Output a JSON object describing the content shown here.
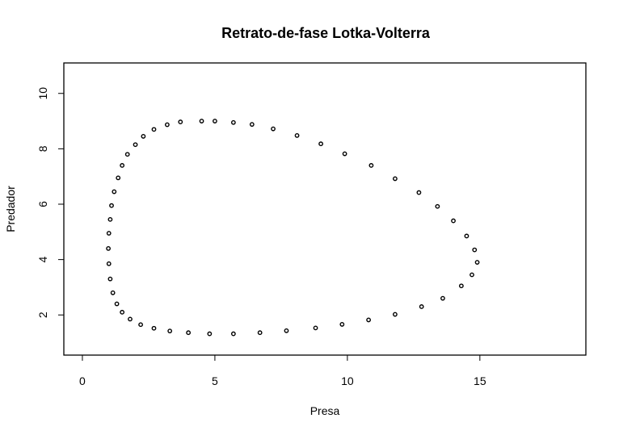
{
  "chart_data": {
    "type": "scatter",
    "title": "Retrato-de-fase Lotka-Volterra",
    "xlabel": "Presa",
    "ylabel": "Predador",
    "xlim": [
      -0.7,
      19.0
    ],
    "ylim": [
      0.55,
      11.1
    ],
    "x_ticks": [
      0,
      5,
      10,
      15
    ],
    "y_ticks": [
      2,
      4,
      6,
      8,
      10
    ],
    "x_tick_labels": [
      "0",
      "5",
      "10",
      "15"
    ],
    "y_tick_labels": [
      "2",
      "4",
      "6",
      "8",
      "10"
    ],
    "marker": "open-circle",
    "color": "#000000",
    "grid": false,
    "series": [
      {
        "x": [
          4.5,
          5.0,
          5.7,
          6.4,
          7.2,
          8.1,
          9.0,
          9.9,
          10.9,
          11.8,
          12.7,
          13.4,
          14.0,
          14.5,
          14.8,
          14.9,
          14.7,
          14.3,
          13.6,
          12.8,
          11.8,
          10.8,
          9.8,
          8.8,
          7.7,
          6.7,
          5.7,
          4.8,
          4.0,
          3.3,
          2.7,
          2.2,
          1.8,
          1.5,
          1.3,
          1.15,
          1.05,
          1.0,
          0.98,
          1.0,
          1.05,
          1.1,
          1.2,
          1.35,
          1.5,
          1.7,
          2.0,
          2.3,
          2.7,
          3.2,
          3.7
        ],
        "y": [
          9.0,
          9.0,
          8.95,
          8.88,
          8.72,
          8.48,
          8.18,
          7.82,
          7.4,
          6.92,
          6.42,
          5.92,
          5.4,
          4.85,
          4.35,
          3.9,
          3.45,
          3.05,
          2.6,
          2.3,
          2.02,
          1.82,
          1.66,
          1.53,
          1.43,
          1.36,
          1.32,
          1.32,
          1.36,
          1.42,
          1.52,
          1.65,
          1.85,
          2.1,
          2.4,
          2.8,
          3.3,
          3.85,
          4.4,
          4.95,
          5.45,
          5.95,
          6.45,
          6.95,
          7.4,
          7.8,
          8.15,
          8.45,
          8.7,
          8.87,
          8.97
        ]
      }
    ]
  }
}
